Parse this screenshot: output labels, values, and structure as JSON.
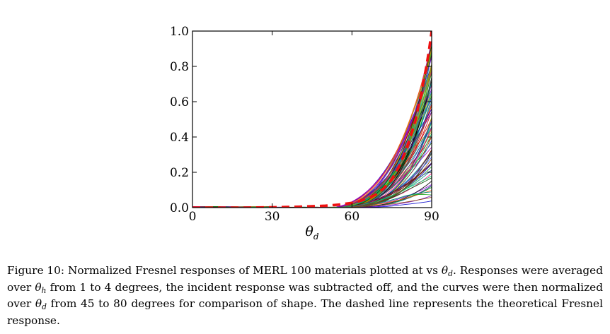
{
  "chart_data": {
    "type": "line",
    "title": "",
    "xlabel": "θ_d",
    "ylabel": "",
    "xlim": [
      0,
      90
    ],
    "ylim": [
      0,
      1.0
    ],
    "xticks": [
      0,
      30,
      60,
      90
    ],
    "yticks": [
      0.0,
      0.2,
      0.4,
      0.6,
      0.8,
      1.0
    ],
    "xtick_labels": [
      "0",
      "30",
      "60",
      "90"
    ],
    "ytick_labels": [
      "0.0",
      "0.2",
      "0.4",
      "0.6",
      "0.8",
      "1.0"
    ],
    "grid": false,
    "series_count_note": "100 material curves",
    "series": [
      {
        "style": "dashed",
        "color": "#ee1111",
        "x": [
          0,
          10,
          20,
          30,
          40,
          50,
          55,
          60,
          63,
          66,
          69,
          72,
          75,
          78,
          81,
          84,
          86,
          88,
          89,
          90
        ],
        "y": [
          0.0,
          0.0,
          0.0,
          0.002,
          0.005,
          0.011,
          0.017,
          0.027,
          0.037,
          0.052,
          0.075,
          0.11,
          0.16,
          0.24,
          0.35,
          0.5,
          0.64,
          0.8,
          0.89,
          1.0
        ]
      }
    ]
  },
  "figure_labels": {
    "xlabel_theta": "θ",
    "xlabel_sub": "d"
  },
  "caption": {
    "p1": "Figure 10: Normalized Fresnel responses of MERL 100 materials plotted at vs ",
    "t1": "θ",
    "s1": "d",
    "p2": ". Responses were averaged over ",
    "t2": "θ",
    "s2": "h",
    "p3": " from 1 to 4 degrees, the incident response was subtracted off, and the curves were then normalized over ",
    "t3": "θ",
    "s3": "d",
    "p4": " from 45 to 80 degrees for comparison of shape. The dashed line represents the theoretical Fresnel response."
  }
}
